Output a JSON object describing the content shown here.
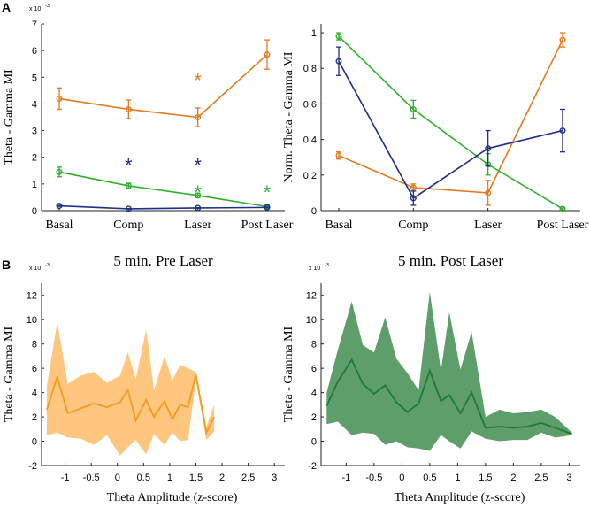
{
  "panel_labels": {
    "a": "A",
    "b": "B"
  },
  "colors": {
    "orange": "#E07B1F",
    "blue": "#1F2E8C",
    "green": "#2FB02F",
    "band_orange": "#FFC680",
    "line_orange": "#F29B1E",
    "band_green": "#5E9E6A",
    "line_green": "#1E7A35"
  },
  "chart_data": [
    {
      "id": "a1",
      "type": "line",
      "categories": [
        "Basal",
        "Comp",
        "Laser",
        "Post Laser"
      ],
      "ylabel": "Theta - Gamma MI",
      "y_multiplier": "x 10",
      "y_exponent": "-3",
      "ylim": [
        0,
        7
      ],
      "yticks": [
        0,
        1,
        2,
        3,
        4,
        5,
        6,
        7
      ],
      "series": [
        {
          "name": "orange",
          "color": "#E07B1F",
          "values": [
            4.2,
            3.8,
            3.5,
            5.85
          ],
          "errors": [
            0.4,
            0.35,
            0.35,
            0.55
          ]
        },
        {
          "name": "green",
          "color": "#2FB02F",
          "values": [
            1.45,
            0.93,
            0.57,
            0.15
          ],
          "errors": [
            0.18,
            0.1,
            0.08,
            0.03
          ]
        },
        {
          "name": "blue",
          "color": "#1F2E8C",
          "values": [
            0.18,
            0.07,
            0.1,
            0.12
          ],
          "errors": [
            0.02,
            0.01,
            0.01,
            0.01
          ]
        }
      ],
      "asterisks": [
        {
          "category": "Comp",
          "y": 1.8,
          "color": "#1F2E8C",
          "text": "*"
        },
        {
          "category": "Laser",
          "y": 5.0,
          "color": "#E07B1F",
          "text": "*"
        },
        {
          "category": "Laser",
          "y": 1.8,
          "color": "#1F2E8C",
          "text": "*"
        },
        {
          "category": "Laser",
          "y": 0.8,
          "color": "#2FB02F",
          "text": "*"
        },
        {
          "category": "Post Laser",
          "y": 0.8,
          "color": "#2FB02F",
          "text": "*"
        }
      ]
    },
    {
      "id": "a2",
      "type": "line",
      "categories": [
        "Basal",
        "Comp",
        "Laser",
        "Post Laser"
      ],
      "ylabel": "Norm. Theta - Gamma MI",
      "ylim": [
        0,
        1.05
      ],
      "yticks": [
        0,
        0.2,
        0.4,
        0.6,
        0.8,
        1
      ],
      "yticklabels": [
        "0",
        "0.2",
        "0.4",
        "0.6",
        "0.8",
        "1"
      ],
      "series": [
        {
          "name": "orange",
          "color": "#E07B1F",
          "values": [
            0.31,
            0.13,
            0.1,
            0.96
          ],
          "errors": [
            0.02,
            0.02,
            0.07,
            0.04
          ]
        },
        {
          "name": "green",
          "color": "#2FB02F",
          "values": [
            0.98,
            0.57,
            0.26,
            0.01
          ],
          "errors": [
            0.02,
            0.05,
            0.06,
            0.005
          ]
        },
        {
          "name": "blue",
          "color": "#1F2E8C",
          "values": [
            0.84,
            0.07,
            0.35,
            0.45
          ],
          "errors": [
            0.08,
            0.04,
            0.1,
            0.12
          ]
        }
      ]
    },
    {
      "id": "b1",
      "type": "area",
      "title": "5 min. Pre Laser",
      "xlabel": "Theta Amplitude (z-score)",
      "ylabel": "Theta - Gamma MI",
      "y_multiplier": "x 10",
      "y_exponent": "-3",
      "xlim": [
        -1.45,
        3.2
      ],
      "ylim": [
        -2,
        13
      ],
      "xticks": [
        -1,
        -0.5,
        0,
        0.5,
        1,
        1.5,
        2,
        2.5,
        3
      ],
      "xticklabels": [
        "-1",
        "-0.5",
        "0",
        "0.5",
        "1",
        "1.5",
        "2",
        "2.5",
        "3"
      ],
      "yticks": [
        -2,
        0,
        2,
        4,
        6,
        8,
        10,
        12
      ],
      "x": [
        -1.35,
        -1.15,
        -0.95,
        -0.7,
        -0.45,
        -0.2,
        0.05,
        0.2,
        0.35,
        0.55,
        0.7,
        0.9,
        1.05,
        1.2,
        1.35,
        1.5,
        1.7,
        1.85
      ],
      "mean": [
        2.6,
        5.3,
        2.3,
        2.7,
        3.1,
        2.8,
        3.2,
        4.2,
        1.7,
        3.4,
        2.0,
        3.3,
        1.8,
        3.0,
        2.8,
        5.5,
        0.7,
        2.0
      ],
      "upper": [
        4.5,
        9.8,
        4.7,
        5.4,
        5.7,
        4.8,
        5.4,
        7.3,
        5.1,
        9.2,
        4.2,
        7.0,
        5.0,
        6.3,
        6.0,
        5.7,
        1.2,
        3.0
      ],
      "lower": [
        0.5,
        0.7,
        0.3,
        0.2,
        -0.3,
        0.5,
        -1.2,
        -0.5,
        0.1,
        -1.1,
        0.6,
        -0.3,
        0.7,
        0.0,
        0.1,
        5.0,
        0.1,
        0.8
      ],
      "band_color": "#FFC680",
      "line_color": "#F29B1E"
    },
    {
      "id": "b2",
      "type": "area",
      "title": "5 min. Post Laser",
      "xlabel": "Theta Amplitude (z-score)",
      "ylabel": "Theta - Gamma MI",
      "y_multiplier": "x 10",
      "y_exponent": "-3",
      "xlim": [
        -1.45,
        3.2
      ],
      "ylim": [
        -2,
        13
      ],
      "xticks": [
        -1,
        -0.5,
        0,
        0.5,
        1,
        1.5,
        2,
        2.5,
        3
      ],
      "xticklabels": [
        "-1",
        "-0.5",
        "0",
        "0.5",
        "1",
        "1.5",
        "2",
        "2.5",
        "3"
      ],
      "yticks": [
        -2,
        0,
        2,
        4,
        6,
        8,
        10,
        12
      ],
      "x": [
        -1.35,
        -1.15,
        -0.9,
        -0.7,
        -0.5,
        -0.3,
        -0.1,
        0.1,
        0.3,
        0.5,
        0.7,
        0.85,
        1.05,
        1.25,
        1.5,
        1.75,
        2.0,
        2.25,
        2.5,
        2.75,
        3.05
      ],
      "mean": [
        2.9,
        4.9,
        6.7,
        4.7,
        3.9,
        4.6,
        3.2,
        2.4,
        3.1,
        5.8,
        3.3,
        3.8,
        2.3,
        4.0,
        1.1,
        1.2,
        1.1,
        1.2,
        1.5,
        1.1,
        0.6
      ],
      "upper": [
        4.0,
        7.5,
        11.5,
        7.9,
        7.3,
        10.2,
        6.8,
        5.6,
        4.2,
        12.3,
        5.8,
        10.6,
        5.9,
        9.0,
        2.0,
        2.6,
        2.3,
        2.4,
        2.6,
        2.0,
        0.7
      ],
      "lower": [
        1.4,
        1.6,
        0.5,
        0.7,
        0.6,
        -0.3,
        0.0,
        -0.5,
        -0.6,
        -0.8,
        0.5,
        0.0,
        -0.6,
        0.8,
        0.2,
        0.0,
        0.1,
        0.1,
        0.7,
        0.3,
        0.5
      ],
      "band_color": "#5E9E6A",
      "line_color": "#1E7A35"
    }
  ]
}
